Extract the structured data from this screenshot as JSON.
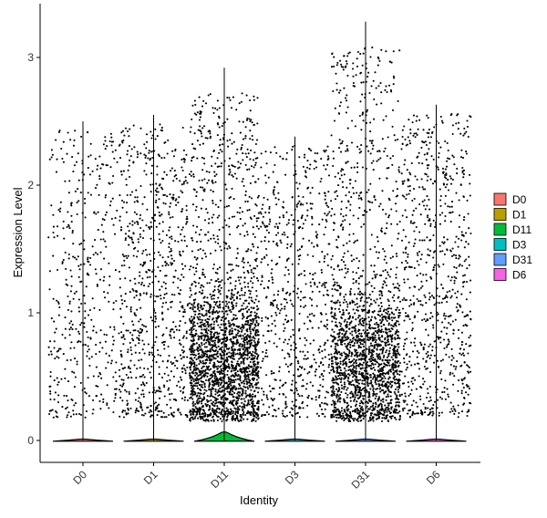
{
  "chart_data": {
    "type": "violin",
    "title": "",
    "xlabel": "Identity",
    "ylabel": "Expression Level",
    "ylim": [
      -0.18,
      3.45
    ],
    "yticks": [
      0,
      1,
      2,
      3
    ],
    "grid": false,
    "legend_position": "right",
    "point_color": "#000000",
    "categories": [
      "D0",
      "D1",
      "D11",
      "D3",
      "D31",
      "D6"
    ],
    "series": [
      {
        "name": "D0",
        "color": "#F8766D",
        "max": 2.5,
        "violin_peak": 0.01,
        "cells": 420
      },
      {
        "name": "D1",
        "color": "#B79F00",
        "max": 2.55,
        "violin_peak": 0.01,
        "cells": 760
      },
      {
        "name": "D11",
        "color": "#00BA38",
        "max": 2.92,
        "violin_peak": 0.06,
        "cells": 2300
      },
      {
        "name": "D3",
        "color": "#00BFC4",
        "max": 2.38,
        "violin_peak": 0.01,
        "cells": 620
      },
      {
        "name": "D31",
        "color": "#619CFF",
        "max": 3.28,
        "violin_peak": 0.01,
        "cells": 2000
      },
      {
        "name": "D6",
        "color": "#F564E3",
        "max": 2.63,
        "violin_peak": 0.01,
        "cells": 760
      }
    ]
  }
}
